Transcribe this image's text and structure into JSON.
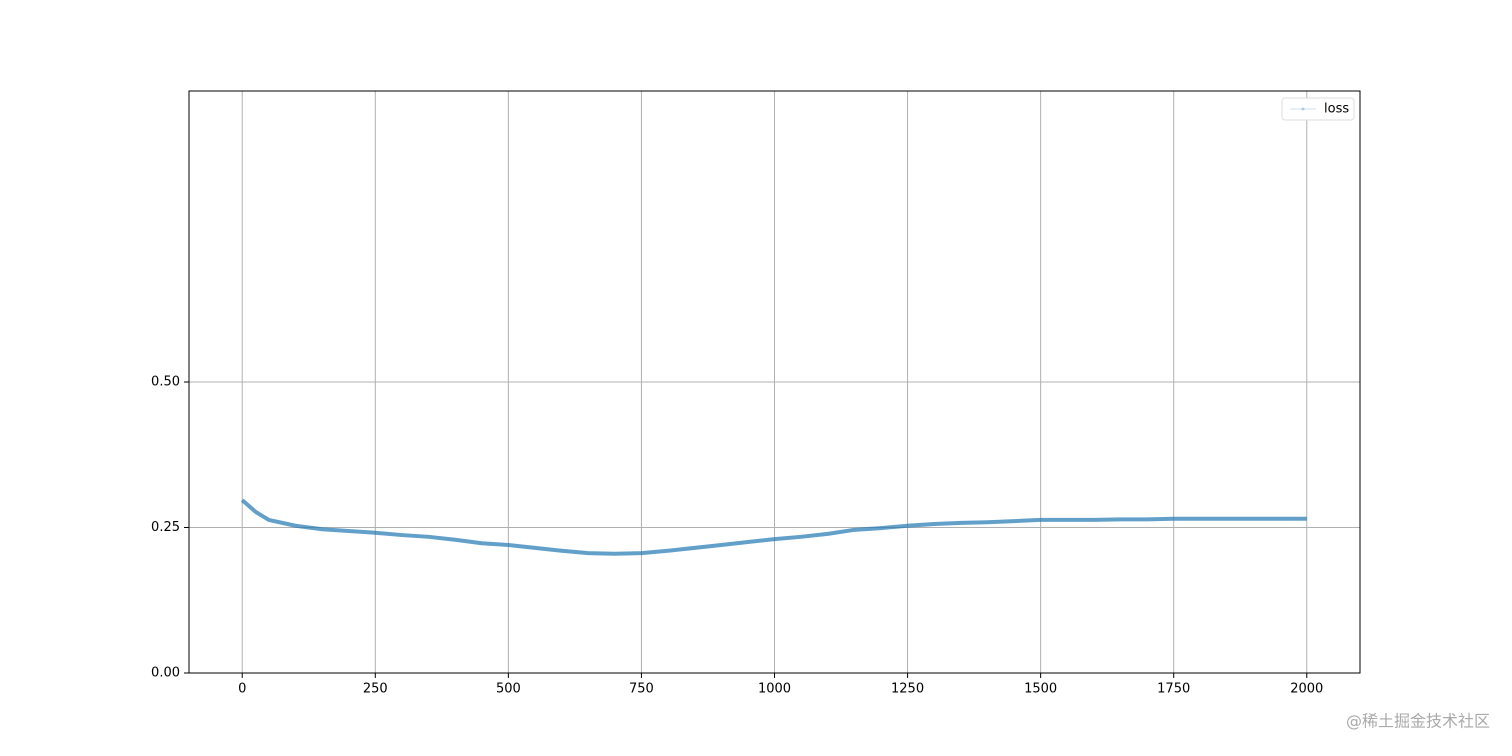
{
  "chart_data": {
    "type": "line",
    "x": [
      0,
      25,
      50,
      100,
      150,
      200,
      250,
      300,
      350,
      400,
      450,
      500,
      550,
      600,
      650,
      700,
      750,
      800,
      850,
      900,
      950,
      1000,
      1050,
      1100,
      1150,
      1200,
      1250,
      1300,
      1350,
      1400,
      1450,
      1500,
      1550,
      1600,
      1650,
      1700,
      1750,
      1800,
      1850,
      1900,
      1950,
      2000
    ],
    "series": [
      {
        "name": "loss",
        "color": "#1f77b4",
        "values": [
          0.297,
          0.277,
          0.263,
          0.253,
          0.247,
          0.244,
          0.241,
          0.237,
          0.234,
          0.229,
          0.223,
          0.22,
          0.215,
          0.21,
          0.206,
          0.205,
          0.206,
          0.21,
          0.215,
          0.22,
          0.225,
          0.23,
          0.234,
          0.239,
          0.246,
          0.249,
          0.253,
          0.256,
          0.258,
          0.259,
          0.261,
          0.263,
          0.263,
          0.263,
          0.264,
          0.264,
          0.265,
          0.265,
          0.265,
          0.265,
          0.265,
          0.265
        ]
      }
    ],
    "xlim": [
      -100,
      2100
    ],
    "xticks": [
      0,
      250,
      500,
      750,
      1000,
      1250,
      1500,
      1750,
      2000
    ],
    "ylim": [
      0,
      1.0
    ],
    "yticks": [
      {
        "value": 0,
        "label": "0.00"
      },
      {
        "value": 0.25,
        "label": "0.25"
      },
      {
        "value": 0.5,
        "label": "0.50"
      }
    ],
    "grid": true,
    "legend": "upper right",
    "watermark": "@稀土掘金技术社区"
  }
}
